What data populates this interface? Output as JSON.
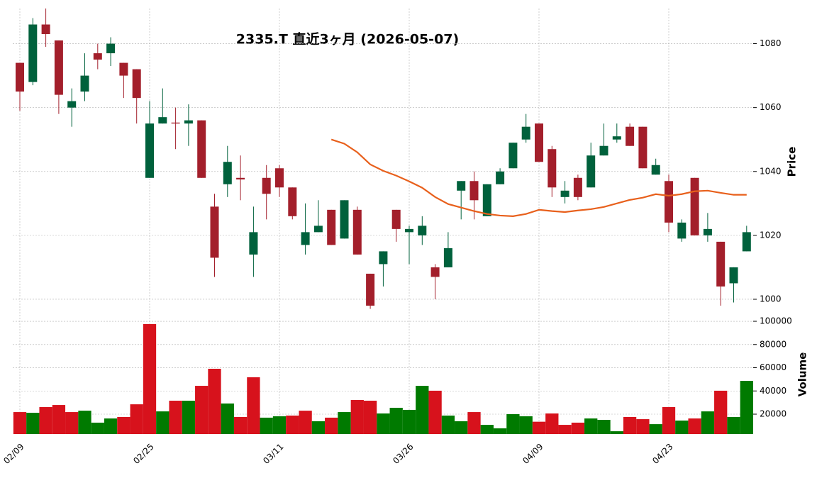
{
  "chart_data": {
    "type": "candlestick",
    "title": "2335.T 直近3ヶ月 (2026-05-07)",
    "categories": [
      "02/09",
      null,
      null,
      null,
      null,
      null,
      null,
      null,
      null,
      null,
      "02/25",
      null,
      null,
      null,
      null,
      null,
      null,
      null,
      null,
      null,
      "03/11",
      null,
      null,
      null,
      null,
      null,
      null,
      null,
      null,
      null,
      "03/26",
      null,
      null,
      null,
      null,
      null,
      null,
      null,
      null,
      null,
      "04/09",
      null,
      null,
      null,
      null,
      null,
      null,
      null,
      null,
      null,
      "04/23",
      null,
      null,
      null,
      null,
      null,
      null
    ],
    "open": [
      1074,
      1068,
      1086,
      1081,
      1060,
      1065,
      1077,
      1077,
      1074,
      1072,
      1038,
      1055,
      1055.3,
      1055,
      1056,
      1029,
      1036,
      1038,
      1014,
      1038,
      1041,
      1035,
      1017,
      1021,
      1028,
      1019,
      1028,
      1008,
      1011,
      1028,
      1021,
      1020,
      1010,
      1010,
      1034,
      1037,
      1026,
      1036,
      1041,
      1050,
      1055,
      1047,
      1032,
      1038,
      1035,
      1045,
      1050,
      1054,
      1054,
      1039,
      1037,
      1019,
      1038,
      1020,
      1018,
      1005,
      1015
    ],
    "high": [
      1074,
      1088,
      1091,
      1081,
      1066,
      1077,
      1080,
      1082,
      1074,
      1072,
      1062,
      1066,
      1060,
      1061,
      1056,
      1033,
      1048,
      1045,
      1029,
      1042,
      1042,
      1035,
      1030,
      1031,
      1028,
      1031,
      1029,
      1008,
      1015,
      1028,
      1023,
      1026,
      1011,
      1021,
      1037,
      1040,
      1036,
      1041,
      1049,
      1058,
      1055,
      1048,
      1037,
      1039,
      1049,
      1055,
      1055,
      1055,
      1054,
      1044,
      1039,
      1025,
      1038,
      1027,
      1018,
      1010,
      1023
    ],
    "low": [
      1059,
      1067,
      1079,
      1058,
      1054,
      1062,
      1072,
      1073,
      1063,
      1055,
      1038,
      1055,
      1047,
      1048,
      1038,
      1007,
      1032,
      1031,
      1007,
      1025,
      1032,
      1025,
      1014,
      1021,
      1017,
      1019,
      1014,
      997,
      1004,
      1018,
      1011,
      1017,
      1000,
      1010,
      1025,
      1025,
      1026,
      1036,
      1041,
      1049,
      1043,
      1032,
      1030,
      1031,
      1035,
      1045,
      1049,
      1048,
      1041,
      1039,
      1021,
      1018,
      1020,
      1018,
      998,
      999,
      1015
    ],
    "close": [
      1065,
      1086,
      1083,
      1064,
      1062,
      1070,
      1075,
      1080,
      1070,
      1063,
      1055,
      1057,
      1055,
      1056,
      1038,
      1013,
      1043,
      1037.5,
      1021,
      1033,
      1035,
      1026,
      1021,
      1023,
      1017,
      1031,
      1014,
      998,
      1015,
      1022,
      1022,
      1023,
      1007,
      1016,
      1037,
      1031,
      1036,
      1040,
      1049,
      1054,
      1043,
      1035,
      1034,
      1032,
      1045,
      1048,
      1051,
      1048,
      1041,
      1042,
      1024,
      1024,
      1020,
      1022,
      1004,
      1010,
      1021
    ],
    "up_color": "#00613c",
    "down_color": "#a31f2b",
    "ma": {
      "color": "#e8601c",
      "values": [
        null,
        null,
        null,
        null,
        null,
        null,
        null,
        null,
        null,
        null,
        null,
        null,
        null,
        null,
        null,
        null,
        null,
        null,
        null,
        null,
        null,
        null,
        null,
        null,
        1050,
        1048.7,
        1046,
        1042.2,
        1040.2,
        1038.7,
        1036.9,
        1034.9,
        1032,
        1029.8,
        1028.7,
        1027.6,
        1026.7,
        1026.2,
        1026,
        1026.7,
        1028,
        1027.6,
        1027.3,
        1027.8,
        1028.2,
        1028.9,
        1030,
        1031.1,
        1031.8,
        1032.9,
        1032.4,
        1032.9,
        1033.8,
        1034,
        1033.3,
        1032.7,
        1032.7
      ]
    },
    "ylabel": "Price",
    "ylim": [
      996,
      1091
    ],
    "yticks": [
      1000,
      1020,
      1040,
      1060,
      1080
    ],
    "grid": true,
    "volume": {
      "label": "Volume",
      "up_color": "#007a00",
      "down_color": "#d7121c",
      "values": [
        21800,
        21200,
        26100,
        27900,
        21800,
        23000,
        12700,
        16300,
        17600,
        28500,
        97600,
        22400,
        31600,
        31600,
        44400,
        59100,
        29200,
        17600,
        51800,
        17000,
        18200,
        18800,
        23000,
        13900,
        17000,
        21800,
        32200,
        31600,
        20600,
        25500,
        23700,
        44400,
        40200,
        18800,
        13900,
        21800,
        10800,
        7800,
        20000,
        18200,
        13500,
        20600,
        10800,
        12700,
        16300,
        15100,
        5300,
        17600,
        15700,
        11400,
        26100,
        14500,
        16300,
        22400,
        40200,
        17600,
        48700
      ],
      "ylim": [
        2900,
        104900
      ],
      "yticks": [
        20000,
        40000,
        60000,
        80000,
        100000
      ]
    }
  }
}
